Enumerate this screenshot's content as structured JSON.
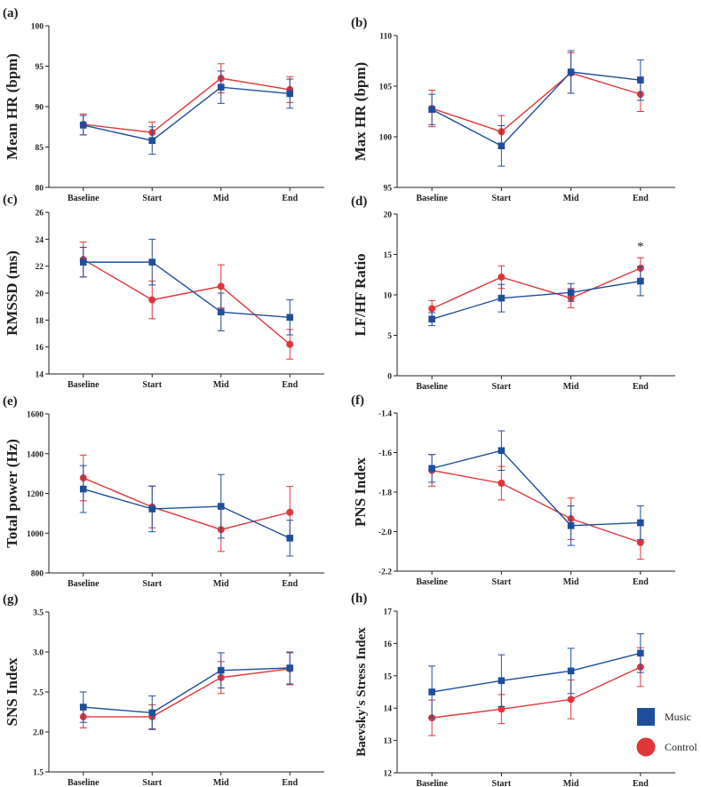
{
  "colors": {
    "music": "#1f4e9c",
    "control": "#e0363a",
    "axis": "#222222"
  },
  "legend": {
    "placement": "bottom-right",
    "items": [
      {
        "key": "music",
        "label": "Music",
        "marker": "square"
      },
      {
        "key": "control",
        "label": "Control",
        "marker": "circle"
      }
    ]
  },
  "chart_data": [
    {
      "panel": "(a)",
      "type": "line",
      "ylabel": "Mean HR (bpm)",
      "categories": [
        "Baseline",
        "Start",
        "Mid",
        "End"
      ],
      "ylim": [
        80,
        100
      ],
      "yticks": [
        "80",
        "85",
        "90",
        "95",
        "100"
      ],
      "series": [
        {
          "name": "Music",
          "values": [
            87.7,
            85.8,
            92.4,
            91.6
          ],
          "err": [
            1.2,
            1.7,
            2.0,
            1.8
          ]
        },
        {
          "name": "Control",
          "values": [
            87.8,
            86.8,
            93.5,
            92.1
          ],
          "err": [
            1.3,
            1.3,
            1.8,
            1.6
          ]
        }
      ]
    },
    {
      "panel": "(b)",
      "type": "line",
      "ylabel": "Max HR (bpm)",
      "categories": [
        "Baseline",
        "Start",
        "Mid",
        "End"
      ],
      "ylim": [
        95,
        110
      ],
      "yticks": [
        "95",
        "100",
        "105",
        "110"
      ],
      "series": [
        {
          "name": "Music",
          "values": [
            102.7,
            99.1,
            106.4,
            105.6
          ],
          "err": [
            1.5,
            2.0,
            2.1,
            2.0
          ]
        },
        {
          "name": "Control",
          "values": [
            102.8,
            100.5,
            106.3,
            104.2
          ],
          "err": [
            1.8,
            1.6,
            2.0,
            1.7
          ]
        }
      ]
    },
    {
      "panel": "(c)",
      "type": "line",
      "ylabel": "RMSSD (ms)",
      "categories": [
        "Baseline",
        "Start",
        "Mid",
        "End"
      ],
      "ylim": [
        14,
        26
      ],
      "yticks": [
        "14",
        "16",
        "18",
        "20",
        "22",
        "24",
        "26"
      ],
      "series": [
        {
          "name": "Music",
          "values": [
            22.3,
            22.3,
            18.6,
            18.2
          ],
          "err": [
            1.1,
            1.7,
            1.4,
            1.3
          ]
        },
        {
          "name": "Control",
          "values": [
            22.5,
            19.5,
            20.5,
            16.2
          ],
          "err": [
            1.3,
            1.4,
            1.6,
            1.1
          ]
        }
      ]
    },
    {
      "panel": "(d)",
      "type": "line",
      "ylabel": "LF/HF Ratio",
      "categories": [
        "Baseline",
        "Start",
        "Mid",
        "End"
      ],
      "ylim": [
        0,
        20
      ],
      "yticks": [
        "0",
        "5",
        "10",
        "15",
        "20"
      ],
      "annotation": {
        "text": "*",
        "category": "End"
      },
      "series": [
        {
          "name": "Music",
          "values": [
            7.0,
            9.6,
            10.3,
            11.7
          ],
          "err": [
            0.8,
            1.7,
            1.1,
            1.8
          ]
        },
        {
          "name": "Control",
          "values": [
            8.3,
            12.2,
            9.6,
            13.3
          ],
          "err": [
            1.0,
            1.4,
            1.2,
            1.3
          ]
        }
      ]
    },
    {
      "panel": "(e)",
      "type": "line",
      "ylabel": "Total power (Hz)",
      "categories": [
        "Baseline",
        "Start",
        "Mid",
        "End"
      ],
      "ylim": [
        800,
        1600
      ],
      "yticks": [
        "800",
        "1000",
        "1200",
        "1400",
        "1600"
      ],
      "series": [
        {
          "name": "Music",
          "values": [
            1222,
            1122,
            1135,
            975
          ],
          "err": [
            118,
            115,
            160,
            90
          ]
        },
        {
          "name": "Control",
          "values": [
            1278,
            1132,
            1018,
            1105
          ],
          "err": [
            115,
            105,
            110,
            130
          ]
        }
      ]
    },
    {
      "panel": "(f)",
      "type": "line",
      "ylabel": "PNS Index",
      "categories": [
        "Baseline",
        "Start",
        "Mid",
        "End"
      ],
      "ylim": [
        -2.2,
        -1.4
      ],
      "yticks": [
        "-2.2",
        "-2.0",
        "-1.8",
        "-1.6",
        "-1.4"
      ],
      "series": [
        {
          "name": "Music",
          "values": [
            -1.68,
            -1.59,
            -1.97,
            -1.955
          ],
          "err": [
            0.07,
            0.1,
            0.1,
            0.085
          ]
        },
        {
          "name": "Control",
          "values": [
            -1.69,
            -1.755,
            -1.935,
            -2.055
          ],
          "err": [
            0.08,
            0.085,
            0.105,
            0.085
          ]
        }
      ]
    },
    {
      "panel": "(g)",
      "type": "line",
      "ylabel": "SNS Index",
      "categories": [
        "Baseline",
        "Start",
        "Mid",
        "End"
      ],
      "ylim": [
        1.5,
        3.5
      ],
      "yticks": [
        "1.5",
        "2.0",
        "2.5",
        "3.0",
        "3.5"
      ],
      "series": [
        {
          "name": "Music",
          "values": [
            2.31,
            2.24,
            2.77,
            2.8
          ],
          "err": [
            0.19,
            0.21,
            0.22,
            0.2
          ]
        },
        {
          "name": "Control",
          "values": [
            2.19,
            2.19,
            2.68,
            2.79
          ],
          "err": [
            0.14,
            0.15,
            0.2,
            0.2
          ]
        }
      ]
    },
    {
      "panel": "(h)",
      "type": "line",
      "ylabel": "Baevsky's Stress Index",
      "categories": [
        "Baseline",
        "Start",
        "Mid",
        "End"
      ],
      "ylim": [
        12,
        17
      ],
      "yticks": [
        "12",
        "13",
        "14",
        "15",
        "16",
        "17"
      ],
      "series": [
        {
          "name": "Music",
          "values": [
            14.5,
            14.85,
            15.15,
            15.7
          ],
          "err": [
            0.8,
            0.8,
            0.7,
            0.6
          ]
        },
        {
          "name": "Control",
          "values": [
            13.7,
            13.97,
            14.27,
            15.27
          ],
          "err": [
            0.55,
            0.45,
            0.6,
            0.6
          ]
        }
      ]
    }
  ]
}
